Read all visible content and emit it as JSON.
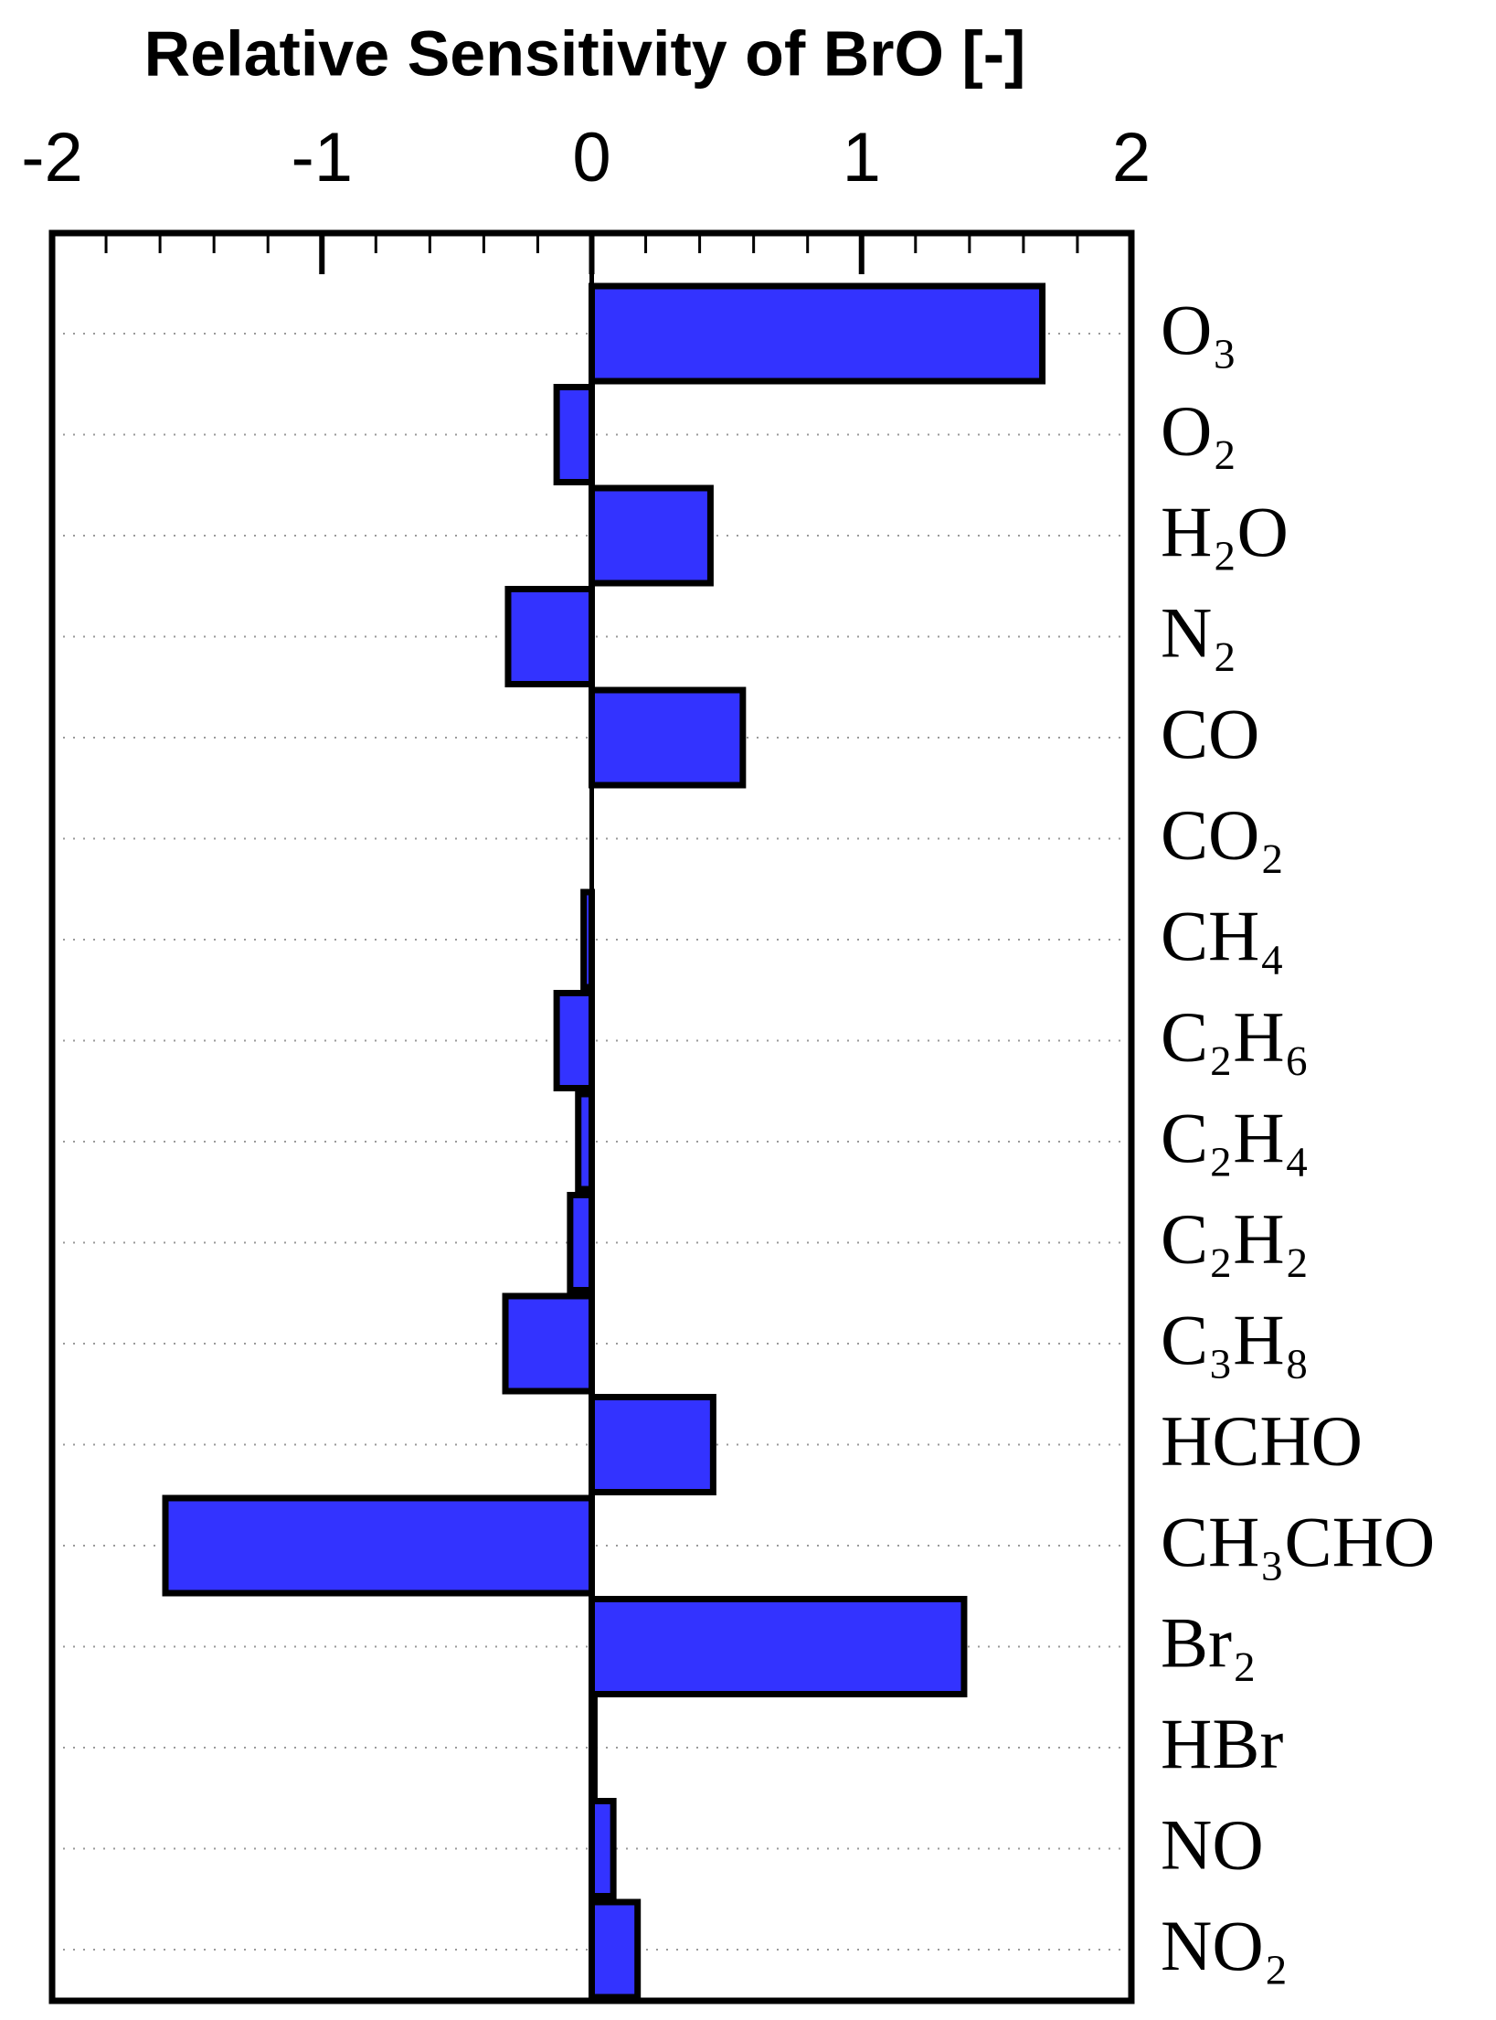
{
  "chart_data": {
    "type": "barh",
    "title": "Relative Sensitivity of BrO [-]",
    "categories": [
      "O₃",
      "O₂",
      "H₂O",
      "N₂",
      "CO",
      "CO₂",
      "CH₄",
      "C₂H₆",
      "C₂H₄",
      "C₂H₂",
      "C₃H₈",
      "HCHO",
      "CH₃CHO",
      "Br₂",
      "HBr",
      "NO",
      "NO₂"
    ],
    "values": [
      1.67,
      -0.13,
      0.44,
      -0.31,
      0.56,
      0.0,
      -0.03,
      -0.13,
      -0.05,
      -0.08,
      -0.32,
      0.45,
      -1.58,
      1.38,
      0.01,
      0.08,
      0.17
    ],
    "color": "#3333ff",
    "xlim": [
      -2,
      2
    ],
    "xticks": [
      -2,
      -1,
      0,
      1,
      2
    ],
    "xminorticks": [
      -1.8,
      -1.6,
      -1.4,
      -1.2,
      -0.8,
      -0.6,
      -0.4,
      -0.2,
      0.2,
      0.4,
      0.6,
      0.8,
      1.2,
      1.4,
      1.6,
      1.8
    ],
    "grid": true
  }
}
